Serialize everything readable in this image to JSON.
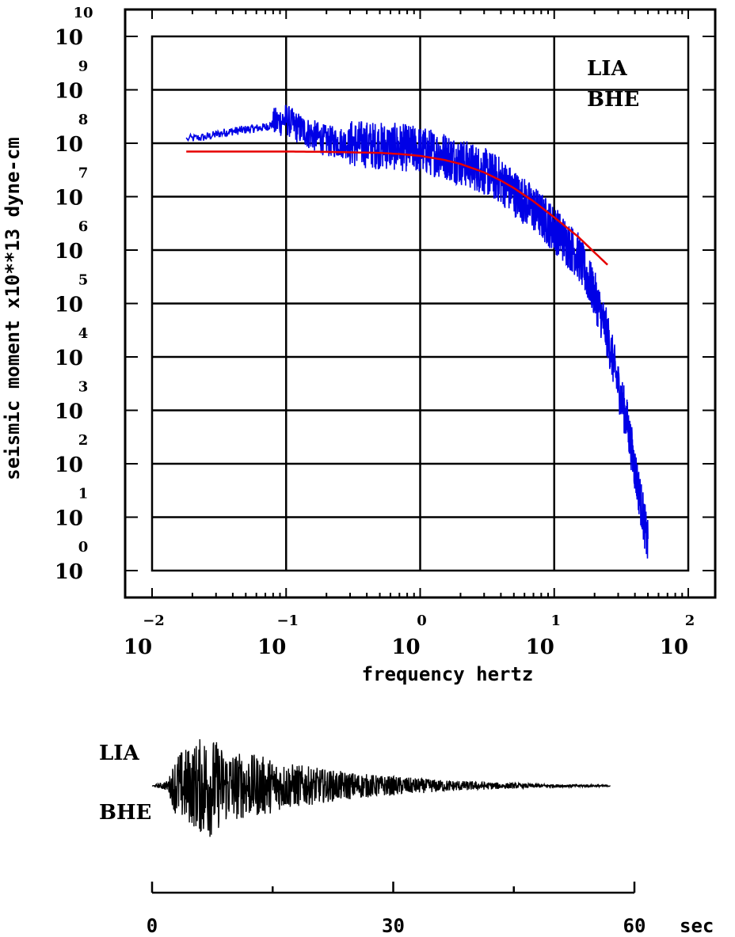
{
  "chart_data": [
    {
      "type": "line",
      "xscale": "log",
      "yscale": "log",
      "xlim": [
        0.01,
        100
      ],
      "ylim": [
        1,
        10000000000
      ],
      "grid": true,
      "xlabel": "frequency  hertz",
      "ylabel": "seismic moment x10**13 dyne-cm",
      "x_ticks": [
        {
          "base": "10",
          "exp": "−2"
        },
        {
          "base": "10",
          "exp": "−1"
        },
        {
          "base": "10",
          "exp": "0"
        },
        {
          "base": "10",
          "exp": "1"
        },
        {
          "base": "10",
          "exp": "2"
        }
      ],
      "y_ticks": [
        {
          "base": "10",
          "exp": "0"
        },
        {
          "base": "10",
          "exp": "1"
        },
        {
          "base": "10",
          "exp": "2"
        },
        {
          "base": "10",
          "exp": "3"
        },
        {
          "base": "10",
          "exp": "4"
        },
        {
          "base": "10",
          "exp": "5"
        },
        {
          "base": "10",
          "exp": "6"
        },
        {
          "base": "10",
          "exp": "7"
        },
        {
          "base": "10",
          "exp": "8"
        },
        {
          "base": "10",
          "exp": "9"
        },
        {
          "base": "10",
          "exp": "10"
        }
      ],
      "annotation": [
        "LIA",
        "BHE"
      ],
      "series": [
        {
          "color": "#0000e6",
          "style": "spectrum",
          "x": [
            0.018,
            0.025,
            0.035,
            0.05,
            0.07,
            0.09,
            0.1,
            0.12,
            0.15,
            0.2,
            0.3,
            0.5,
            0.7,
            1.0,
            1.5,
            2.0,
            3.0,
            4.0,
            5.0,
            7.0,
            10.0,
            15.0,
            20.0,
            25.0,
            30.0,
            35.0,
            40.0,
            45.0,
            50.0
          ],
          "y": [
            120000000,
            130000000,
            160000000,
            180000000,
            200000000,
            260000000,
            280000000,
            200000000,
            150000000,
            110000000,
            100000000,
            90000000,
            85000000,
            75000000,
            60000000,
            45000000,
            30000000,
            20000000,
            12000000,
            6000000,
            2500000,
            800000,
            150000,
            25000,
            3000,
            600,
            80,
            15,
            3
          ]
        },
        {
          "color": "#e60000",
          "style": "model",
          "x": [
            0.018,
            0.05,
            0.1,
            0.2,
            0.5,
            0.7,
            1.0,
            1.5,
            2.0,
            3.0,
            4.0,
            5.0,
            7.0,
            10.0,
            15.0,
            20.0,
            25.0
          ],
          "y": [
            70000000,
            70000000,
            70000000,
            69000000,
            66000000,
            63000000,
            58000000,
            49000000,
            41000000,
            28500000,
            20000000,
            14500000,
            8200000,
            4100000,
            1800000,
            900000,
            530000
          ]
        }
      ]
    },
    {
      "type": "line",
      "xlim": [
        0,
        60
      ],
      "x_ticks": [
        "0",
        "30",
        "60"
      ],
      "x_unit": "sec",
      "labels": [
        "LIA",
        "BHE"
      ],
      "series": [
        {
          "color": "#000000",
          "style": "seismogram",
          "x": [
            0,
            1,
            2,
            3,
            4,
            5,
            6,
            7,
            8,
            9,
            10,
            12,
            14,
            16,
            18,
            20,
            22,
            25,
            28,
            30,
            35,
            40,
            45,
            50,
            55,
            60
          ],
          "y": [
            0,
            0.05,
            0.1,
            0.6,
            0.7,
            0.75,
            0.9,
            1.0,
            0.85,
            0.7,
            0.65,
            0.6,
            0.55,
            0.45,
            0.4,
            0.35,
            0.3,
            0.25,
            0.2,
            0.18,
            0.12,
            0.08,
            0.05,
            0.03,
            0.02,
            0
          ]
        }
      ]
    }
  ]
}
